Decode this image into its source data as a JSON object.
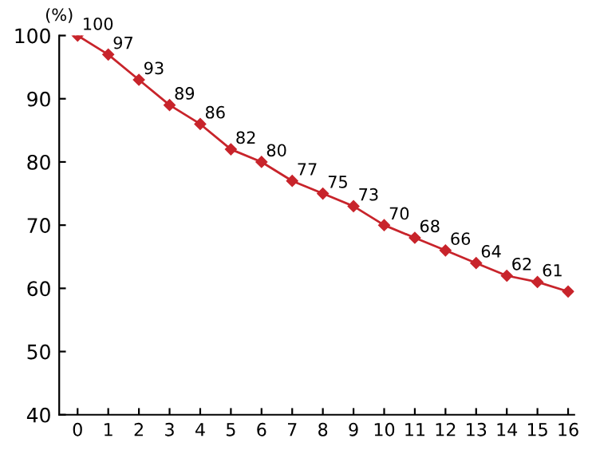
{
  "chart_data": {
    "type": "line",
    "ylabel": "(%)",
    "x": [
      0,
      1,
      2,
      3,
      4,
      5,
      6,
      7,
      8,
      9,
      10,
      11,
      12,
      13,
      14,
      15,
      16
    ],
    "series": [
      {
        "color": "#c8242b",
        "values": [
          100,
          97,
          93,
          89,
          86,
          82,
          80,
          77,
          75,
          73,
          70,
          68,
          66,
          64,
          62,
          61,
          59.5
        ],
        "value_labels": [
          "100",
          "97",
          "93",
          "89",
          "86",
          "82",
          "80",
          "77",
          "75",
          "73",
          "70",
          "68",
          "66",
          "64",
          "62",
          "61",
          null
        ]
      }
    ],
    "xlim": [
      -0.6,
      16.2
    ],
    "xticks": [
      0,
      1,
      2,
      3,
      4,
      5,
      6,
      7,
      8,
      9,
      10,
      11,
      12,
      13,
      14,
      15,
      16
    ],
    "ylim": [
      40,
      100
    ],
    "yticks": [
      40,
      50,
      60,
      70,
      80,
      90,
      100
    ],
    "marker": "diamond",
    "line_style": "solid",
    "grid": false,
    "legend": false
  }
}
